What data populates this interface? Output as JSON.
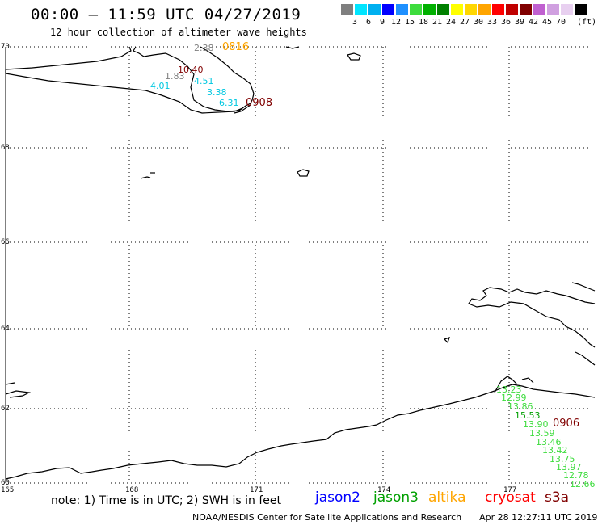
{
  "header": {
    "title": "00:00 – 11:59 UTC 04/27/2019",
    "subtitle": "12 hour collection of altimeter wave heights"
  },
  "legend": {
    "unit_label": "(ft)",
    "bins": [
      {
        "color": "#7f7f7f",
        "label": ""
      },
      {
        "color": "#00e5ff",
        "label": "3"
      },
      {
        "color": "#00b0f0",
        "label": "6"
      },
      {
        "color": "#0000ff",
        "label": "9"
      },
      {
        "color": "#1e90ff",
        "label": "12"
      },
      {
        "color": "#3ddc3d",
        "label": "15"
      },
      {
        "color": "#00b000",
        "label": "18"
      },
      {
        "color": "#008000",
        "label": "21"
      },
      {
        "color": "#ffff00",
        "label": "24"
      },
      {
        "color": "#ffd700",
        "label": "27"
      },
      {
        "color": "#ffa500",
        "label": "30"
      },
      {
        "color": "#ff0000",
        "label": "33"
      },
      {
        "color": "#c00000",
        "label": "36"
      },
      {
        "color": "#800000",
        "label": "39"
      },
      {
        "color": "#c060d0",
        "label": "42"
      },
      {
        "color": "#d0a0e0",
        "label": "45"
      },
      {
        "color": "#e8d0f0",
        "label": "70"
      },
      {
        "color": "#000000",
        "label": ""
      }
    ]
  },
  "grid": {
    "lat_labels": [
      "70",
      "68",
      "66",
      "64",
      "62",
      "60"
    ],
    "lon_labels": [
      "165",
      "168",
      "171",
      "174",
      "177"
    ]
  },
  "observations": {
    "north_track": [
      {
        "value": "2.38",
        "color": "#808080"
      },
      {
        "value": "10.40",
        "color": "#800000"
      },
      {
        "value": "1.83",
        "color": "#808080"
      },
      {
        "value": "4.01",
        "color": "#00c8e0"
      },
      {
        "value": "4.51",
        "color": "#00c8e0"
      },
      {
        "value": "3.38",
        "color": "#00c8e0"
      },
      {
        "value": "6.31",
        "color": "#00c8e0"
      }
    ],
    "north_times": [
      {
        "value": "0816",
        "color": "#ffa500"
      },
      {
        "value": "0908",
        "color": "#800000"
      }
    ],
    "south_track": [
      {
        "value": "13.23",
        "color": "#3ddc3d"
      },
      {
        "value": "12.99",
        "color": "#3ddc3d"
      },
      {
        "value": "13.86",
        "color": "#3ddc3d"
      },
      {
        "value": "15.53",
        "color": "#00a000"
      },
      {
        "value": "13.90",
        "color": "#3ddc3d"
      },
      {
        "value": "13.59",
        "color": "#3ddc3d"
      },
      {
        "value": "13.46",
        "color": "#3ddc3d"
      },
      {
        "value": "13.42",
        "color": "#3ddc3d"
      },
      {
        "value": "13.75",
        "color": "#3ddc3d"
      },
      {
        "value": "13.97",
        "color": "#3ddc3d"
      },
      {
        "value": "12.78",
        "color": "#3ddc3d"
      },
      {
        "value": "12.66",
        "color": "#3ddc3d"
      }
    ],
    "south_time": {
      "value": "0906",
      "color": "#800000"
    }
  },
  "notes": {
    "text": "note: 1) Time is in UTC; 2) SWH is in feet"
  },
  "satellites": [
    {
      "name": "jason2",
      "color": "#0000ff"
    },
    {
      "name": "jason3",
      "color": "#00a000"
    },
    {
      "name": "altika",
      "color": "#ffa500"
    },
    {
      "name": "cryosat",
      "color": "#ff0000"
    },
    {
      "name": "s3a",
      "color": "#800000"
    }
  ],
  "footer": {
    "credit": "NOAA/NESDIS Center for Satellite Applications and Research",
    "timestamp": "Apr 28 12:27:11 UTC 2019"
  }
}
